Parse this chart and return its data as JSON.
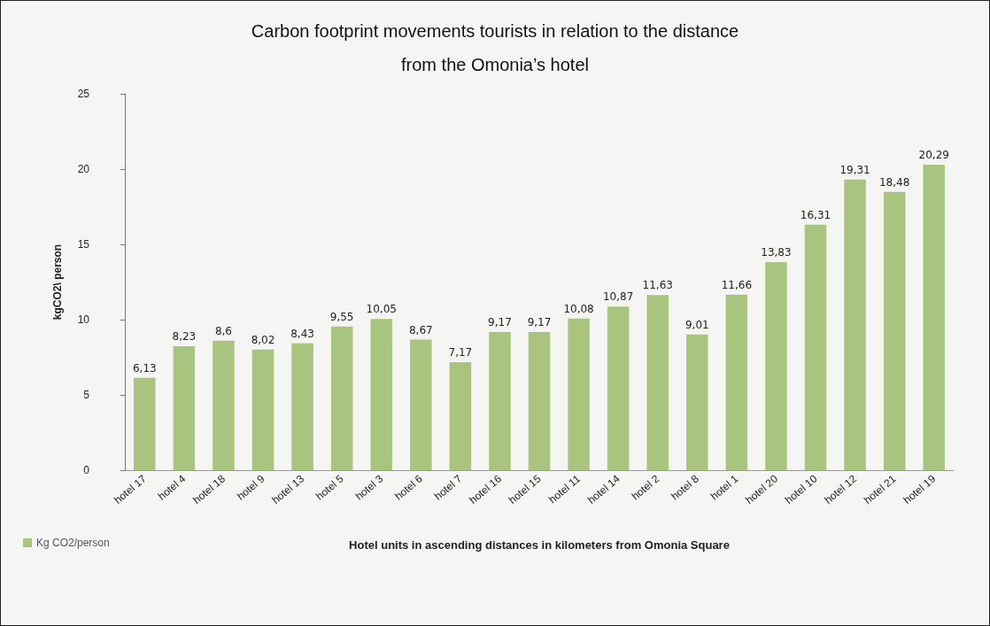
{
  "chart_data": {
    "type": "bar",
    "title": "Carbon footprint movements tourists in relation to the distance\nfrom the Omonia’s hotel",
    "xlabel": "Hotel units in ascending distances in kilometers from Omonia Square",
    "ylabel": "kgCO2\\ person",
    "categories": [
      "hotel 17",
      "hotel 4",
      "hotel 18",
      "hotel 9",
      "hotel 13",
      "hotel 5",
      "hotel 3",
      "hotel 6",
      "hotel 7",
      "hotel 16",
      "hotel 15",
      "hotel 11",
      "hotel 14",
      "hotel 2",
      "hotel 8",
      "hotel 1",
      "hotel 20",
      "hotel 10",
      "hotel 12",
      "hotel 21",
      "hotel 19"
    ],
    "series": [
      {
        "name": "Kg CO2/person",
        "color": "#a9c47f",
        "values": [
          6.13,
          8.23,
          8.6,
          8.02,
          8.43,
          9.55,
          10.05,
          8.67,
          7.17,
          9.17,
          9.17,
          10.08,
          10.87,
          11.63,
          9.01,
          11.66,
          13.83,
          16.31,
          19.31,
          18.48,
          20.29
        ],
        "value_labels": [
          "6,13",
          "8,23",
          "8,6",
          "8,02",
          "8,43",
          "9,55",
          "10,05",
          "8,67",
          "7,17",
          "9,17",
          "9,17",
          "10,08",
          "10,87",
          "11,63",
          "9,01",
          "11,66",
          "13,83",
          "16,31",
          "19,31",
          "18,48",
          "20,29"
        ]
      }
    ],
    "ylim": [
      0,
      25
    ],
    "yticks": [
      0,
      5,
      10,
      15,
      20,
      25
    ],
    "grid": false,
    "legend": "bottom left"
  }
}
